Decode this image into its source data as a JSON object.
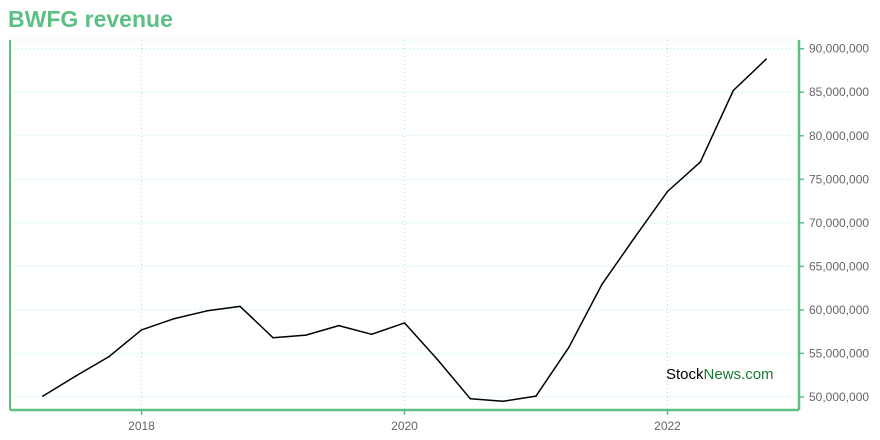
{
  "colors": {
    "accent": "#5dbf85",
    "line": "#000000",
    "grid": "#b7e3cb",
    "watermark_dark": "#000000",
    "watermark_accent": "#1a7a2e"
  },
  "watermark": {
    "part1": "Stock",
    "part2": "News",
    "part3": ".com"
  },
  "chart_data": {
    "type": "line",
    "title": "BWFG revenue",
    "xlabel": "",
    "ylabel": "",
    "x_ticks": [
      "2018",
      "2020",
      "2022"
    ],
    "x_tick_values": [
      2018.0,
      2020.0,
      2022.0
    ],
    "y_ticks": [
      "50,000,000",
      "55,000,000",
      "60,000,000",
      "65,000,000",
      "70,000,000",
      "75,000,000",
      "80,000,000",
      "85,000,000",
      "90,000,000"
    ],
    "y_tick_values": [
      50000000,
      55000000,
      60000000,
      65000000,
      70000000,
      75000000,
      80000000,
      85000000,
      90000000
    ],
    "xlim": [
      2017.0,
      2023.0
    ],
    "ylim": [
      48500000,
      91000000
    ],
    "grid": true,
    "y_axis_side": "right",
    "series": [
      {
        "x": [
          2017.25,
          2017.5,
          2017.75,
          2018.0,
          2018.25,
          2018.5,
          2018.75,
          2019.0,
          2019.25,
          2019.5,
          2019.75,
          2020.0,
          2020.25,
          2020.5,
          2020.75,
          2021.0,
          2021.25,
          2021.5,
          2021.75,
          2022.0,
          2022.25,
          2022.5,
          2022.75
        ],
        "values": [
          50100000,
          52400000,
          54600000,
          57700000,
          59000000,
          59900000,
          60400000,
          56800000,
          57100000,
          58200000,
          57200000,
          58500000,
          54300000,
          49800000,
          49500000,
          50100000,
          55700000,
          62900000,
          68300000,
          73600000,
          77000000,
          85200000,
          88800000
        ]
      }
    ]
  }
}
